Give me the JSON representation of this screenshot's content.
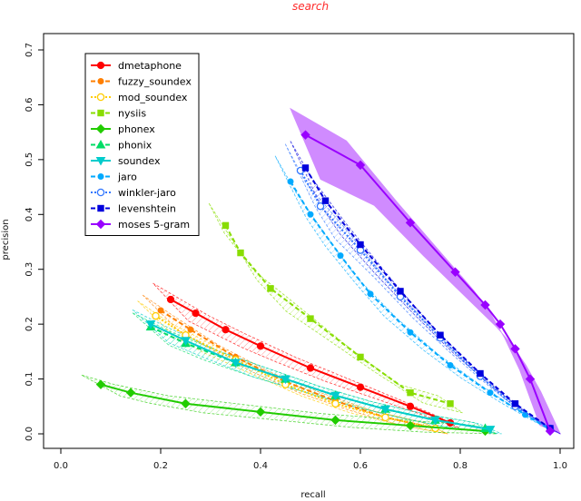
{
  "chart_data": {
    "type": "line",
    "title": "search",
    "xlabel": "recall",
    "ylabel": "precision",
    "xlim": [
      0.0,
      1.0
    ],
    "ylim": [
      0.0,
      0.7
    ],
    "x_ticks": [
      "0.0",
      "0.2",
      "0.4",
      "0.6",
      "0.8",
      "1.0"
    ],
    "y_ticks": [
      "0.0",
      "0.1",
      "0.2",
      "0.3",
      "0.4",
      "0.5",
      "0.6",
      "0.7"
    ],
    "legend_position": "top-left",
    "series": [
      {
        "name": "dmetaphone",
        "color": "#ff0000",
        "marker": "circle",
        "line_style": "solid",
        "band": "hatch",
        "x": [
          0.22,
          0.27,
          0.33,
          0.4,
          0.5,
          0.6,
          0.7,
          0.78
        ],
        "y": [
          0.245,
          0.22,
          0.19,
          0.16,
          0.12,
          0.085,
          0.05,
          0.02
        ]
      },
      {
        "name": "fuzzy_soundex",
        "color": "#ff7f00",
        "marker": "dot",
        "line_style": "dashed",
        "band": "hatch",
        "x": [
          0.2,
          0.26,
          0.35,
          0.45,
          0.55,
          0.65,
          0.75
        ],
        "y": [
          0.225,
          0.19,
          0.14,
          0.095,
          0.06,
          0.03,
          0.01
        ]
      },
      {
        "name": "mod_soundex",
        "color": "#ffcc00",
        "marker": "circle-open",
        "line_style": "dotted",
        "band": "hatch",
        "x": [
          0.19,
          0.25,
          0.35,
          0.45,
          0.55,
          0.65,
          0.75
        ],
        "y": [
          0.215,
          0.18,
          0.135,
          0.09,
          0.055,
          0.03,
          0.01
        ]
      },
      {
        "name": "nysiis",
        "color": "#88dd00",
        "marker": "square",
        "line_style": "dashed",
        "band": "hatch",
        "x": [
          0.33,
          0.36,
          0.42,
          0.5,
          0.6,
          0.7,
          0.78
        ],
        "y": [
          0.38,
          0.33,
          0.265,
          0.21,
          0.14,
          0.075,
          0.055
        ]
      },
      {
        "name": "phonex",
        "color": "#22cc00",
        "marker": "diamond",
        "line_style": "solid",
        "band": "hatch",
        "x": [
          0.08,
          0.14,
          0.25,
          0.4,
          0.55,
          0.7,
          0.85
        ],
        "y": [
          0.09,
          0.075,
          0.055,
          0.04,
          0.025,
          0.015,
          0.005
        ]
      },
      {
        "name": "phonix",
        "color": "#00dd66",
        "marker": "triangle",
        "line_style": "dashed",
        "band": "hatch",
        "x": [
          0.18,
          0.25,
          0.35,
          0.45,
          0.55,
          0.65,
          0.75,
          0.85
        ],
        "y": [
          0.195,
          0.165,
          0.13,
          0.1,
          0.07,
          0.045,
          0.025,
          0.01
        ]
      },
      {
        "name": "soundex",
        "color": "#00cccc",
        "marker": "triangle-down",
        "line_style": "solid",
        "band": "hatch",
        "x": [
          0.18,
          0.25,
          0.35,
          0.45,
          0.55,
          0.65,
          0.75,
          0.86
        ],
        "y": [
          0.2,
          0.17,
          0.13,
          0.1,
          0.07,
          0.045,
          0.025,
          0.008
        ]
      },
      {
        "name": "jaro",
        "color": "#00aaff",
        "marker": "dot",
        "line_style": "dashed",
        "band": "hatch",
        "x": [
          0.46,
          0.5,
          0.56,
          0.62,
          0.7,
          0.78,
          0.86,
          0.93,
          0.98
        ],
        "y": [
          0.46,
          0.4,
          0.325,
          0.255,
          0.185,
          0.125,
          0.075,
          0.035,
          0.008
        ]
      },
      {
        "name": "winkler-jaro",
        "color": "#3377ff",
        "marker": "circle-open",
        "line_style": "dotted",
        "band": "hatch",
        "x": [
          0.48,
          0.52,
          0.6,
          0.68,
          0.76,
          0.84,
          0.91,
          0.98
        ],
        "y": [
          0.48,
          0.415,
          0.335,
          0.25,
          0.175,
          0.105,
          0.05,
          0.01
        ]
      },
      {
        "name": "levenshtein",
        "color": "#0000dd",
        "marker": "square",
        "line_style": "dashed",
        "band": "hatch",
        "x": [
          0.49,
          0.53,
          0.6,
          0.68,
          0.76,
          0.84,
          0.91,
          0.98
        ],
        "y": [
          0.485,
          0.425,
          0.345,
          0.26,
          0.18,
          0.11,
          0.055,
          0.01
        ]
      },
      {
        "name": "moses 5-gram",
        "color": "#9900ff",
        "marker": "diamond",
        "line_style": "solid",
        "band": "fill",
        "x": [
          0.49,
          0.6,
          0.7,
          0.79,
          0.85,
          0.88,
          0.91,
          0.94,
          0.98
        ],
        "y": [
          0.545,
          0.49,
          0.385,
          0.295,
          0.235,
          0.2,
          0.155,
          0.1,
          0.005
        ]
      }
    ]
  }
}
